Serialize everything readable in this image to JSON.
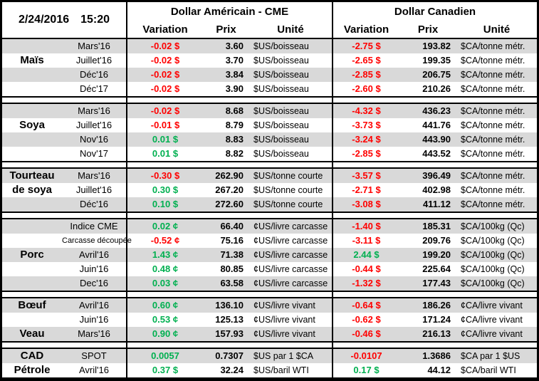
{
  "meta": {
    "date": "2/24/2016",
    "time": "15:20"
  },
  "header": {
    "us_title": "Dollar Américain - CME",
    "ca_title": "Dollar Canadien",
    "col_variation": "Variation",
    "col_prix": "Prix",
    "col_unite": "Unité"
  },
  "colors": {
    "up": "#00B050",
    "down": "#FF0000",
    "stripe": "#D9D9D9",
    "border": "#000000"
  },
  "sections": [
    {
      "name": "mais",
      "rows": [
        {
          "label": "",
          "month": "Mars'16",
          "us_var": "-0.02 $",
          "us_dir": "down",
          "us_prix": "3.60",
          "us_unit": "$US/boisseau",
          "ca_var": "-2.75 $",
          "ca_dir": "down",
          "ca_prix": "193.82",
          "ca_unit": "$CA/tonne métr.",
          "shade": true
        },
        {
          "label": "Maïs",
          "month": "Juillet'16",
          "us_var": "-0.02 $",
          "us_dir": "down",
          "us_prix": "3.70",
          "us_unit": "$US/boisseau",
          "ca_var": "-2.65 $",
          "ca_dir": "down",
          "ca_prix": "199.35",
          "ca_unit": "$CA/tonne métr.",
          "shade": false
        },
        {
          "label": "",
          "month": "Déc'16",
          "us_var": "-0.02 $",
          "us_dir": "down",
          "us_prix": "3.84",
          "us_unit": "$US/boisseau",
          "ca_var": "-2.85 $",
          "ca_dir": "down",
          "ca_prix": "206.75",
          "ca_unit": "$CA/tonne métr.",
          "shade": true
        },
        {
          "label": "",
          "month": "Déc'17",
          "us_var": "-0.02 $",
          "us_dir": "down",
          "us_prix": "3.90",
          "us_unit": "$US/boisseau",
          "ca_var": "-2.60 $",
          "ca_dir": "down",
          "ca_prix": "210.26",
          "ca_unit": "$CA/tonne métr.",
          "shade": false
        }
      ]
    },
    {
      "name": "soya",
      "rows": [
        {
          "label": "",
          "month": "Mars'16",
          "us_var": "-0.02 $",
          "us_dir": "down",
          "us_prix": "8.68",
          "us_unit": "$US/boisseau",
          "ca_var": "-4.32 $",
          "ca_dir": "down",
          "ca_prix": "436.23",
          "ca_unit": "$CA/tonne métr.",
          "shade": true
        },
        {
          "label": "Soya",
          "month": "Juillet'16",
          "us_var": "-0.01 $",
          "us_dir": "down",
          "us_prix": "8.79",
          "us_unit": "$US/boisseau",
          "ca_var": "-3.73 $",
          "ca_dir": "down",
          "ca_prix": "441.76",
          "ca_unit": "$CA/tonne métr.",
          "shade": false
        },
        {
          "label": "",
          "month": "Nov'16",
          "us_var": "0.01 $",
          "us_dir": "up",
          "us_prix": "8.83",
          "us_unit": "$US/boisseau",
          "ca_var": "-3.24 $",
          "ca_dir": "down",
          "ca_prix": "443.90",
          "ca_unit": "$CA/tonne métr.",
          "shade": true
        },
        {
          "label": "",
          "month": "Nov'17",
          "us_var": "0.01 $",
          "us_dir": "up",
          "us_prix": "8.82",
          "us_unit": "$US/boisseau",
          "ca_var": "-2.85 $",
          "ca_dir": "down",
          "ca_prix": "443.52",
          "ca_unit": "$CA/tonne métr.",
          "shade": false
        }
      ]
    },
    {
      "name": "tourteau-de-soya",
      "rows": [
        {
          "label": "Tourteau",
          "month": "Mars'16",
          "us_var": "-0.30 $",
          "us_dir": "down",
          "us_prix": "262.90",
          "us_unit": "$US/tonne courte",
          "ca_var": "-3.57 $",
          "ca_dir": "down",
          "ca_prix": "396.49",
          "ca_unit": "$CA/tonne métr.",
          "shade": true
        },
        {
          "label": "de soya",
          "month": "Juillet'16",
          "us_var": "0.30 $",
          "us_dir": "up",
          "us_prix": "267.20",
          "us_unit": "$US/tonne courte",
          "ca_var": "-2.71 $",
          "ca_dir": "down",
          "ca_prix": "402.98",
          "ca_unit": "$CA/tonne métr.",
          "shade": false
        },
        {
          "label": "",
          "month": "Déc'16",
          "us_var": "0.10 $",
          "us_dir": "up",
          "us_prix": "272.60",
          "us_unit": "$US/tonne courte",
          "ca_var": "-3.08 $",
          "ca_dir": "down",
          "ca_prix": "411.12",
          "ca_unit": "$CA/tonne métr.",
          "shade": true
        }
      ]
    },
    {
      "name": "porc",
      "rows": [
        {
          "label": "",
          "month": "Indice CME",
          "us_var": "0.02 ¢",
          "us_dir": "up",
          "us_prix": "66.40",
          "us_unit": "¢US/livre carcasse",
          "ca_var": "-1.40 $",
          "ca_dir": "down",
          "ca_prix": "185.31",
          "ca_unit": "$CA/100kg (Qc)",
          "shade": true
        },
        {
          "label": "",
          "month": "Carcasse découpée",
          "small": true,
          "us_var": "-0.52 ¢",
          "us_dir": "down",
          "us_prix": "75.16",
          "us_unit": "¢US/livre carcasse",
          "ca_var": "-3.11 $",
          "ca_dir": "down",
          "ca_prix": "209.76",
          "ca_unit": "$CA/100kg (Qc)",
          "shade": false
        },
        {
          "label": "Porc",
          "month": "Avril'16",
          "us_var": "1.43 ¢",
          "us_dir": "up",
          "us_prix": "71.38",
          "us_unit": "¢US/livre carcasse",
          "ca_var": "2.44 $",
          "ca_dir": "up",
          "ca_prix": "199.20",
          "ca_unit": "$CA/100kg (Qc)",
          "shade": true
        },
        {
          "label": "",
          "month": "Juin'16",
          "us_var": "0.48 ¢",
          "us_dir": "up",
          "us_prix": "80.85",
          "us_unit": "¢US/livre carcasse",
          "ca_var": "-0.44 $",
          "ca_dir": "down",
          "ca_prix": "225.64",
          "ca_unit": "$CA/100kg (Qc)",
          "shade": false
        },
        {
          "label": "",
          "month": "Dec'16",
          "us_var": "0.03 ¢",
          "us_dir": "up",
          "us_prix": "63.58",
          "us_unit": "¢US/livre carcasse",
          "ca_var": "-1.32 $",
          "ca_dir": "down",
          "ca_prix": "177.43",
          "ca_unit": "$CA/100kg (Qc)",
          "shade": true
        }
      ]
    },
    {
      "name": "boeuf-veau",
      "rows": [
        {
          "label": "Bœuf",
          "month": "Avril'16",
          "us_var": "0.60 ¢",
          "us_dir": "up",
          "us_prix": "136.10",
          "us_unit": "¢US/livre vivant",
          "ca_var": "-0.64 $",
          "ca_dir": "down",
          "ca_prix": "186.26",
          "ca_unit": "¢CA/livre vivant",
          "shade": true
        },
        {
          "label": "",
          "month": "Juin'16",
          "us_var": "0.53 ¢",
          "us_dir": "up",
          "us_prix": "125.13",
          "us_unit": "¢US/livre vivant",
          "ca_var": "-0.62 $",
          "ca_dir": "down",
          "ca_prix": "171.24",
          "ca_unit": "¢CA/livre vivant",
          "shade": false
        },
        {
          "label": "Veau",
          "month": "Mars'16",
          "us_var": "0.90 ¢",
          "us_dir": "up",
          "us_prix": "157.93",
          "us_unit": "¢US/livre vivant",
          "ca_var": "-0.46 $",
          "ca_dir": "down",
          "ca_prix": "216.13",
          "ca_unit": "¢CA/livre vivant",
          "shade": true
        }
      ]
    },
    {
      "name": "cad-petrole",
      "rows": [
        {
          "label": "CAD",
          "month": "SPOT",
          "us_var": "0.0057",
          "us_dir": "up",
          "us_prix": "0.7307",
          "us_unit": "$US par 1 $CA",
          "ca_var": "-0.0107",
          "ca_dir": "down",
          "ca_prix": "1.3686",
          "ca_unit": "$CA par 1 $US",
          "shade": true
        },
        {
          "label": "Pétrole",
          "month": "Avril'16",
          "us_var": "0.37 $",
          "us_dir": "up",
          "us_prix": "32.24",
          "us_unit": "$US/baril WTI",
          "ca_var": "0.17 $",
          "ca_dir": "up",
          "ca_prix": "44.12",
          "ca_unit": "$CA/baril WTI",
          "shade": false
        }
      ]
    }
  ]
}
